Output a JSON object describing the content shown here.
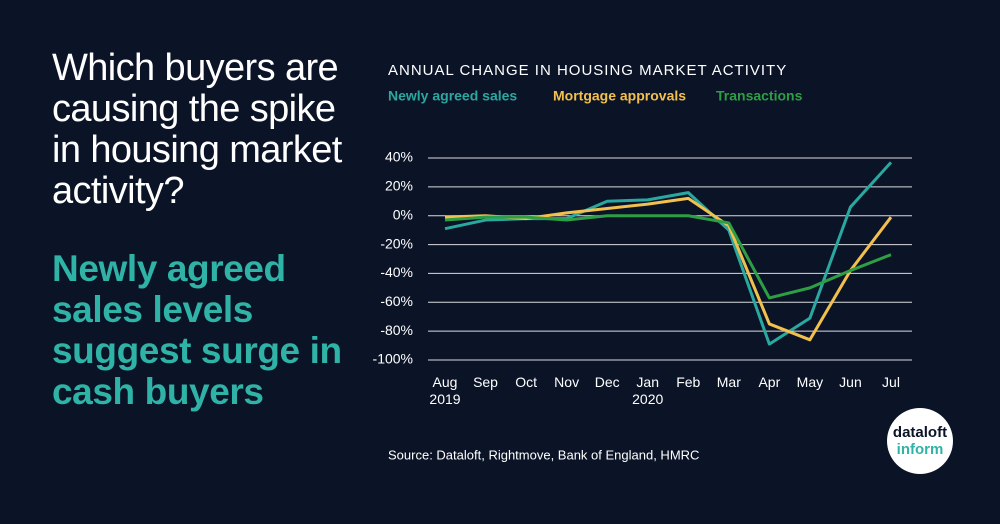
{
  "headline": "Which buyers are causing the spike in housing market activity?",
  "subheadline": "Newly agreed sales levels suggest surge in cash buyers",
  "source": "Source: Dataloft, Rightmove, Bank of England, HMRC",
  "logo": {
    "line1": "dataloft",
    "line2": "inform"
  },
  "chart_data": {
    "type": "line",
    "title": "ANNUAL CHANGE IN HOUSING MARKET ACTIVITY",
    "categories": [
      "Aug\n2019",
      "Sep",
      "Oct",
      "Nov",
      "Dec",
      "Jan\n2020",
      "Feb",
      "Mar",
      "Apr",
      "May",
      "Jun",
      "Jul"
    ],
    "series": [
      {
        "name": "Newly agreed sales",
        "color": "#2aa8a0",
        "values": [
          -9,
          -3,
          -2,
          -2,
          10,
          11,
          16,
          -10,
          -89,
          -71,
          6,
          37
        ]
      },
      {
        "name": "Mortgage approvals",
        "color": "#f2c04d",
        "values": [
          -1,
          0,
          -2,
          2,
          5,
          8,
          12,
          -7,
          -75,
          -86,
          -38,
          -1
        ]
      },
      {
        "name": "Transactions",
        "color": "#2e9e44",
        "values": [
          -3,
          -1,
          -1,
          -3,
          0,
          0,
          0,
          -5,
          -57,
          -50,
          -38,
          -27
        ]
      }
    ],
    "ylim": [
      -100,
      40
    ],
    "yticks": [
      {
        "value": 40,
        "label": "40%"
      },
      {
        "value": 20,
        "label": "20%"
      },
      {
        "value": 0,
        "label": "0%"
      },
      {
        "value": -20,
        "label": "-20%"
      },
      {
        "value": -40,
        "label": "-40%"
      },
      {
        "value": -60,
        "label": "-60%"
      },
      {
        "value": -80,
        "label": "-80%"
      },
      {
        "value": -100,
        "label": "-100%"
      }
    ],
    "grid": true
  }
}
